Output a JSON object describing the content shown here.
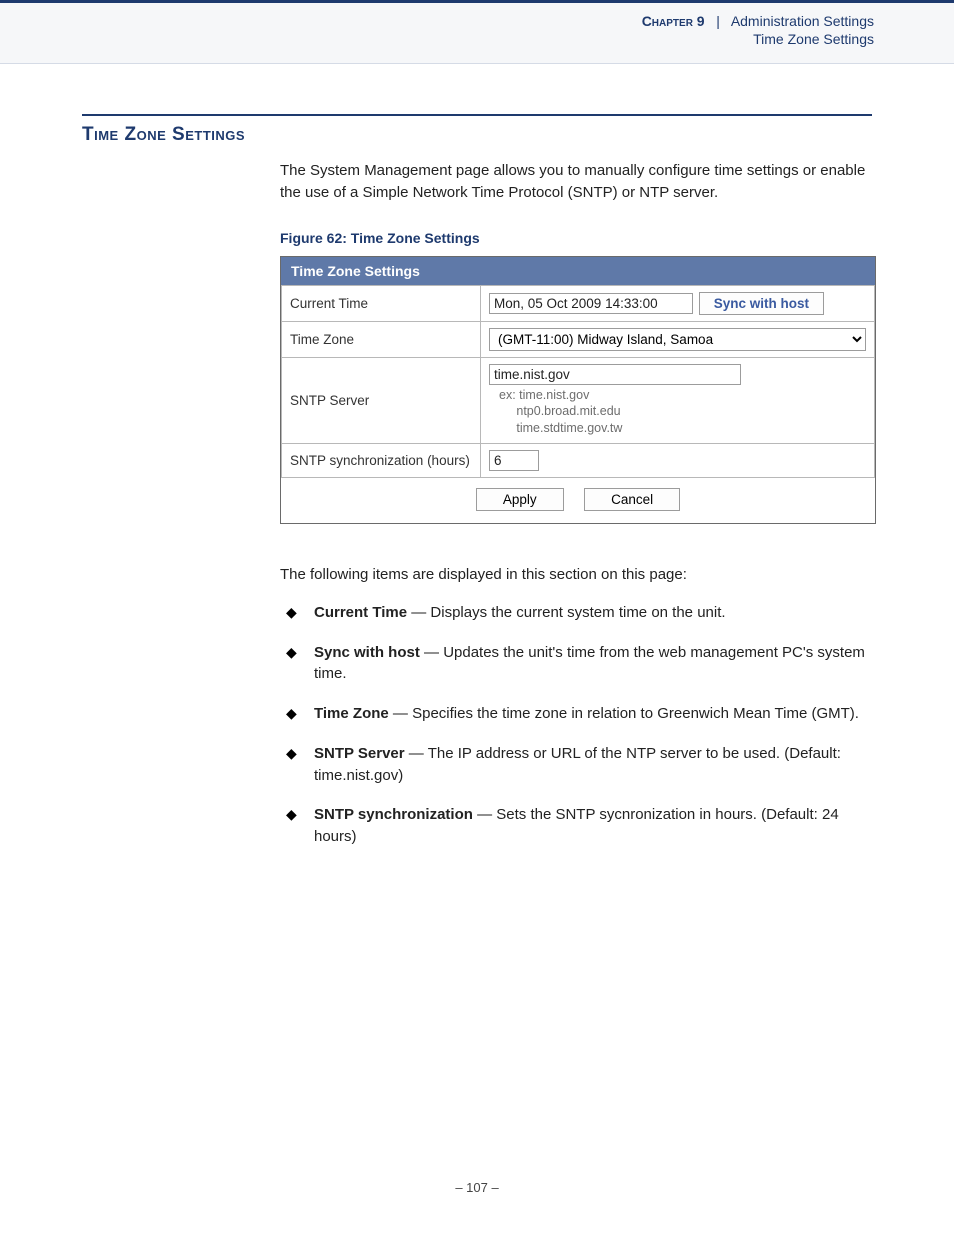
{
  "header": {
    "chapter": "Chapter 9",
    "separator_raw": "  |  ",
    "crumb": "Administration Settings",
    "sub": "Time Zone Settings"
  },
  "section": {
    "title": "Time Zone Settings",
    "intro": "The System Management page allows you to manually configure time settings or enable the use of a Simple Network Time Protocol (SNTP) or NTP server."
  },
  "figure": {
    "caption": "Figure 62:  Time Zone Settings",
    "panel_title": "Time Zone Settings",
    "rows": {
      "current_time": {
        "label": "Current Time",
        "value": "Mon, 05 Oct 2009 14:33:00",
        "sync_btn": "Sync with host"
      },
      "time_zone": {
        "label": "Time Zone",
        "value": "(GMT-11:00) Midway Island, Samoa"
      },
      "sntp_server": {
        "label": "SNTP Server",
        "value": "time.nist.gov",
        "examples_prefix": "ex:",
        "examples": [
          "time.nist.gov",
          "ntp0.broad.mit.edu",
          "time.stdtime.gov.tw"
        ]
      },
      "sntp_sync": {
        "label": "SNTP synchronization (hours)",
        "value": "6"
      }
    },
    "buttons": {
      "apply": "Apply",
      "cancel": "Cancel"
    }
  },
  "descriptions": {
    "lead": "The following items are displayed in this section on this page:",
    "items": [
      {
        "term": "Current Time",
        "dash": " — ",
        "text": "Displays the current system time on the unit."
      },
      {
        "term": "Sync with host",
        "dash": " — ",
        "text": "Updates the unit's time from the web management PC's system time."
      },
      {
        "term": "Time Zone",
        "dash": " — ",
        "text": "Specifies the time zone in relation to Greenwich Mean Time (GMT)."
      },
      {
        "term": "SNTP Server",
        "dash": " — ",
        "text": "The IP address or URL of the NTP server to be used. (Default: time.nist.gov)"
      },
      {
        "term": "SNTP synchronization",
        "dash": " — ",
        "text": "Sets the SNTP sycnronization in hours. (Default: 24 hours)"
      }
    ]
  },
  "footer": {
    "page": "–  107  –"
  }
}
